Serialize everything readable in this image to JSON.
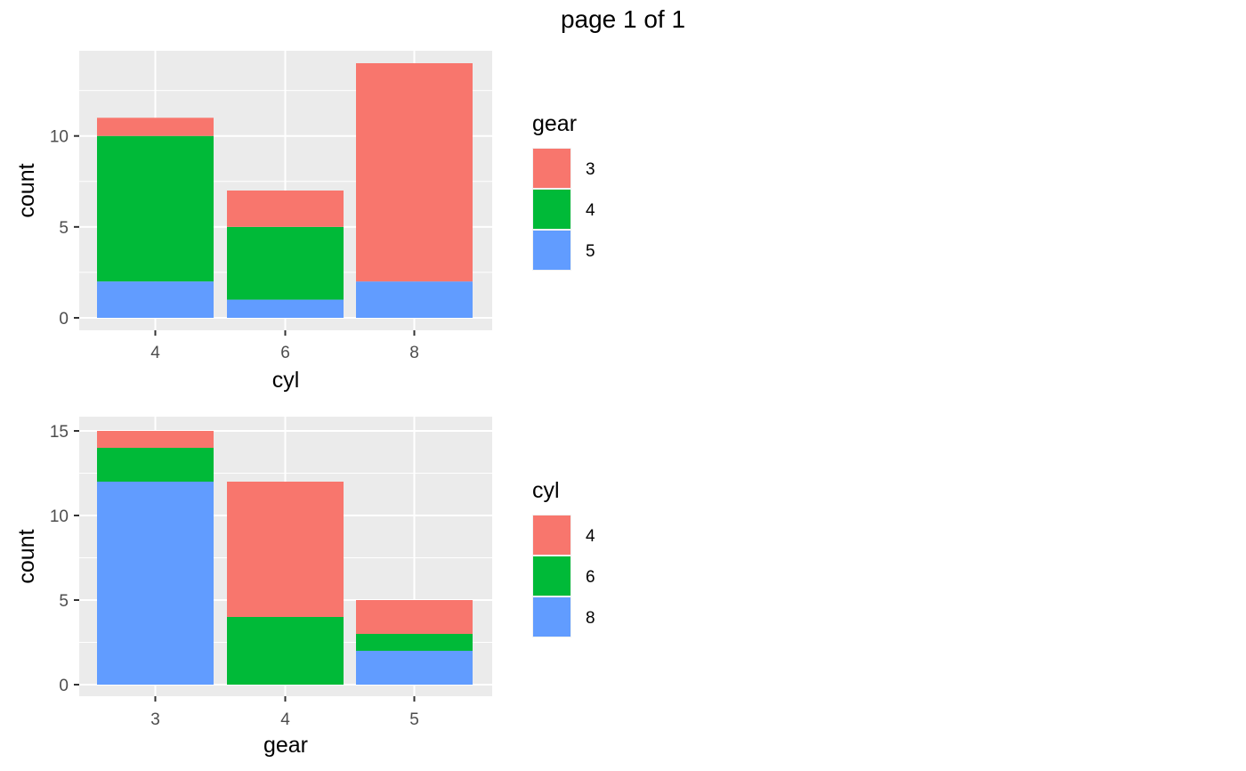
{
  "page_title": "page 1 of 1",
  "colors": {
    "red": "#F8766D",
    "green": "#00BA38",
    "blue": "#619CFF",
    "panel": "#EBEBEB",
    "grid": "#FFFFFF"
  },
  "chart_data": [
    {
      "type": "bar",
      "stacked": true,
      "xlabel": "cyl",
      "ylabel": "count",
      "categories": [
        "4",
        "6",
        "8"
      ],
      "legend_title": "gear",
      "legend_position": "right",
      "ylim": [
        0,
        14
      ],
      "yticks": [
        0,
        5,
        10
      ],
      "grid": true,
      "series": [
        {
          "name": "3",
          "color": "#F8766D",
          "values": [
            1,
            2,
            12
          ]
        },
        {
          "name": "4",
          "color": "#00BA38",
          "values": [
            8,
            4,
            0
          ]
        },
        {
          "name": "5",
          "color": "#619CFF",
          "values": [
            2,
            1,
            2
          ]
        }
      ]
    },
    {
      "type": "bar",
      "stacked": true,
      "xlabel": "gear",
      "ylabel": "count",
      "categories": [
        "3",
        "4",
        "5"
      ],
      "legend_title": "cyl",
      "legend_position": "right",
      "ylim": [
        0,
        15
      ],
      "yticks": [
        0,
        5,
        10,
        15
      ],
      "grid": true,
      "series": [
        {
          "name": "4",
          "color": "#F8766D",
          "values": [
            1,
            8,
            2
          ]
        },
        {
          "name": "6",
          "color": "#00BA38",
          "values": [
            2,
            4,
            1
          ]
        },
        {
          "name": "8",
          "color": "#619CFF",
          "values": [
            12,
            0,
            2
          ]
        }
      ]
    }
  ]
}
